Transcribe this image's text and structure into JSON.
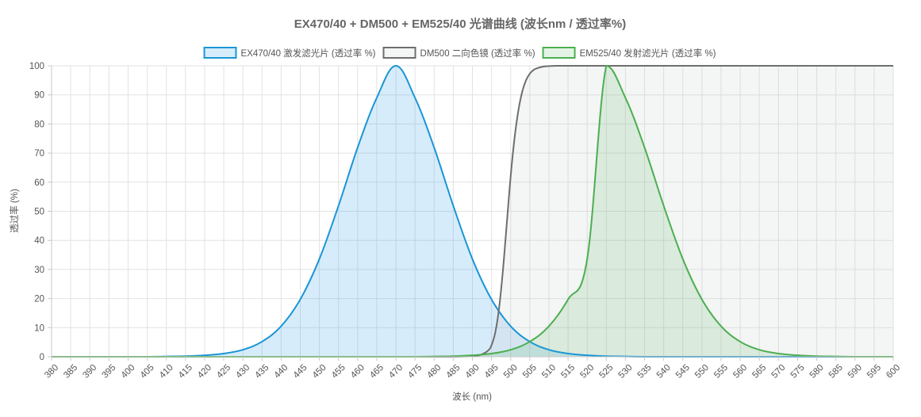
{
  "chart_data": {
    "type": "area",
    "title": "EX470/40 + DM500 + EM525/40 光谱曲线 (波长nm / 透过率%)",
    "xlabel": "波长 (nm)",
    "ylabel": "透过率 (%)",
    "xlim": [
      380,
      600
    ],
    "ylim": [
      0,
      100
    ],
    "x_ticks": [
      380,
      385,
      390,
      395,
      400,
      405,
      410,
      415,
      420,
      425,
      430,
      435,
      440,
      445,
      450,
      455,
      460,
      465,
      470,
      475,
      480,
      485,
      490,
      495,
      500,
      505,
      510,
      515,
      520,
      525,
      530,
      535,
      540,
      545,
      550,
      555,
      560,
      565,
      570,
      575,
      580,
      585,
      590,
      595,
      600
    ],
    "y_ticks": [
      0,
      10,
      20,
      30,
      40,
      50,
      60,
      70,
      80,
      90,
      100
    ],
    "grid": true,
    "legend_position": "top-center",
    "series": [
      {
        "name": "EX470/40 激发滤光片 (透过率 %)",
        "color": "#1a96d6",
        "fill": "rgba(54,162,235,0.2)",
        "x": [
          380,
          385,
          390,
          395,
          400,
          405,
          410,
          415,
          420,
          425,
          430,
          435,
          440,
          445,
          450,
          455,
          460,
          465,
          470,
          475,
          480,
          485,
          490,
          495,
          500,
          505,
          510,
          515,
          520,
          525,
          530,
          535,
          540,
          545,
          550,
          555,
          560,
          565,
          570,
          575,
          580,
          585,
          590,
          595,
          600
        ],
        "values": [
          0,
          0,
          0,
          0,
          0,
          0,
          0.1,
          0.2,
          0.5,
          1.1,
          2.4,
          5.2,
          10.5,
          19.7,
          33.6,
          51.9,
          71.9,
          89.0,
          100,
          89.0,
          71.9,
          51.9,
          33.6,
          19.7,
          10.5,
          5.2,
          2.4,
          1.1,
          0.5,
          0.2,
          0.1,
          0,
          0,
          0,
          0,
          0,
          0,
          0,
          0,
          0,
          0,
          0,
          0,
          0,
          0
        ]
      },
      {
        "name": "DM500 二向色镜 (透过率 %)",
        "color": "#6e6e6e",
        "fill": "rgba(201,203,207,0.2)",
        "x": [
          380,
          390,
          400,
          410,
          420,
          430,
          440,
          450,
          460,
          470,
          480,
          485,
          490,
          492,
          494,
          495,
          496,
          497,
          498,
          499,
          500,
          501,
          502,
          503,
          504,
          505,
          506,
          507,
          508,
          509,
          510,
          512,
          515,
          520,
          530,
          540,
          550,
          560,
          570,
          580,
          590,
          600
        ],
        "values": [
          0,
          0,
          0,
          0,
          0,
          0,
          0,
          0,
          0,
          0,
          0,
          0,
          0.2,
          0.6,
          2,
          4,
          8.5,
          17,
          30,
          46,
          62,
          75,
          84.5,
          91,
          95,
          97.3,
          98.6,
          99.2,
          99.6,
          99.8,
          99.9,
          100,
          100,
          100,
          100,
          100,
          100,
          100,
          100,
          100,
          100,
          100
        ]
      },
      {
        "name": "EM525/40 发射滤光片 (透过率 %)",
        "color": "#4caf50",
        "fill": "rgba(76,175,80,0.15)",
        "x": [
          380,
          385,
          390,
          395,
          400,
          405,
          410,
          415,
          420,
          425,
          430,
          435,
          440,
          445,
          450,
          455,
          460,
          465,
          470,
          475,
          480,
          485,
          490,
          495,
          500,
          505,
          510,
          515,
          520,
          525,
          530,
          535,
          540,
          545,
          550,
          555,
          560,
          565,
          570,
          575,
          580,
          585,
          590,
          595,
          600
        ],
        "values": [
          0,
          0,
          0,
          0,
          0,
          0,
          0,
          0,
          0,
          0,
          0,
          0,
          0,
          0,
          0,
          0,
          0,
          0,
          0,
          0,
          0.1,
          0.2,
          0.5,
          1.1,
          2.4,
          5.2,
          10.5,
          19.7,
          33.6,
          100,
          89.0,
          71.9,
          51.9,
          33.6,
          19.7,
          10.5,
          5.2,
          2.4,
          1.1,
          0.5,
          0.2,
          0.1,
          0,
          0,
          0
        ]
      }
    ]
  }
}
